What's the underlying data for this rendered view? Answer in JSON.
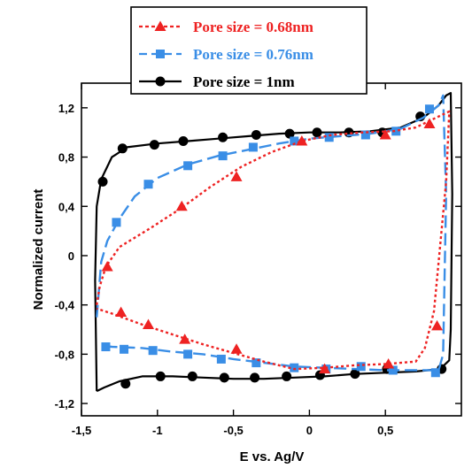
{
  "chart_data": {
    "type": "line",
    "xlabel": "E vs. Ag/V",
    "ylabel": "Normalized current",
    "xlim": [
      -1.5,
      1.0
    ],
    "ylim": [
      -1.3,
      1.4
    ],
    "x_ticks": [
      -1.5,
      -1.0,
      -0.5,
      0.0,
      0.5
    ],
    "x_tick_labels": [
      "-1,5",
      "-1",
      "-0,5",
      "0",
      "0,5"
    ],
    "y_ticks": [
      -1.2,
      -0.8,
      -0.4,
      0.0,
      0.4,
      0.8,
      1.2
    ],
    "y_tick_labels": [
      "-1,2",
      "-0,8",
      "-0,4",
      "0",
      "0,4",
      "0,8",
      "1,2"
    ],
    "legend_position": "top-center",
    "series": [
      {
        "name": "Pore size = 0.68nm",
        "color": "#ee2222",
        "marker": "triangle",
        "line_style": "dotted",
        "curve": [
          [
            -1.4,
            -0.4
          ],
          [
            -1.38,
            -0.25
          ],
          [
            -1.34,
            -0.09
          ],
          [
            -1.25,
            0.07
          ],
          [
            -1.05,
            0.22
          ],
          [
            -0.85,
            0.38
          ],
          [
            -0.65,
            0.56
          ],
          [
            -0.45,
            0.72
          ],
          [
            -0.25,
            0.84
          ],
          [
            -0.05,
            0.93
          ],
          [
            0.15,
            0.98
          ],
          [
            0.35,
            1.0
          ],
          [
            0.55,
            1.01
          ],
          [
            0.7,
            1.04
          ],
          [
            0.8,
            1.1
          ],
          [
            0.92,
            1.17
          ],
          [
            0.9,
            0.6
          ],
          [
            0.82,
            -0.45
          ],
          [
            0.76,
            -0.75
          ],
          [
            0.7,
            -0.86
          ],
          [
            0.5,
            -0.88
          ],
          [
            0.3,
            -0.89
          ],
          [
            0.1,
            -0.91
          ],
          [
            -0.1,
            -0.92
          ],
          [
            -0.3,
            -0.86
          ],
          [
            -0.5,
            -0.79
          ],
          [
            -0.7,
            -0.72
          ],
          [
            -0.9,
            -0.64
          ],
          [
            -1.1,
            -0.56
          ],
          [
            -1.3,
            -0.47
          ],
          [
            -1.4,
            -0.43
          ]
        ],
        "markers": [
          [
            -1.33,
            -0.09
          ],
          [
            -0.84,
            0.4
          ],
          [
            -0.48,
            0.64
          ],
          [
            -0.05,
            0.93
          ],
          [
            0.5,
            0.98
          ],
          [
            0.79,
            1.07
          ],
          [
            0.84,
            -0.57
          ],
          [
            0.52,
            -0.88
          ],
          [
            0.1,
            -0.92
          ],
          [
            -0.48,
            -0.76
          ],
          [
            -0.82,
            -0.68
          ],
          [
            -1.06,
            -0.56
          ],
          [
            -1.24,
            -0.46
          ]
        ]
      },
      {
        "name": "Pore size = 0.76nm",
        "color": "#3a8ee6",
        "marker": "square",
        "line_style": "dashed",
        "curve": [
          [
            -1.4,
            -0.5
          ],
          [
            -1.37,
            -0.05
          ],
          [
            -1.33,
            0.12
          ],
          [
            -1.25,
            0.3
          ],
          [
            -1.15,
            0.48
          ],
          [
            -1.0,
            0.63
          ],
          [
            -0.8,
            0.74
          ],
          [
            -0.6,
            0.81
          ],
          [
            -0.4,
            0.86
          ],
          [
            -0.2,
            0.91
          ],
          [
            0.0,
            0.95
          ],
          [
            0.2,
            0.97
          ],
          [
            0.4,
            0.99
          ],
          [
            0.6,
            1.03
          ],
          [
            0.75,
            1.12
          ],
          [
            0.85,
            1.22
          ],
          [
            0.88,
            1.3
          ],
          [
            0.9,
            0.5
          ],
          [
            0.88,
            -0.8
          ],
          [
            0.85,
            -0.93
          ],
          [
            0.7,
            -0.93
          ],
          [
            0.5,
            -0.93
          ],
          [
            0.3,
            -0.92
          ],
          [
            0.1,
            -0.91
          ],
          [
            -0.1,
            -0.9
          ],
          [
            -0.3,
            -0.87
          ],
          [
            -0.5,
            -0.84
          ],
          [
            -0.7,
            -0.8
          ],
          [
            -0.9,
            -0.78
          ],
          [
            -1.1,
            -0.75
          ],
          [
            -1.3,
            -0.74
          ],
          [
            -1.38,
            -0.73
          ]
        ],
        "markers": [
          [
            -1.27,
            0.27
          ],
          [
            -1.06,
            0.58
          ],
          [
            -0.8,
            0.73
          ],
          [
            -0.57,
            0.81
          ],
          [
            -0.37,
            0.88
          ],
          [
            -0.1,
            0.93
          ],
          [
            0.13,
            0.96
          ],
          [
            0.37,
            0.98
          ],
          [
            0.57,
            1.01
          ],
          [
            0.79,
            1.19
          ],
          [
            0.83,
            -0.95
          ],
          [
            0.55,
            -0.93
          ],
          [
            0.34,
            -0.9
          ],
          [
            0.11,
            -0.92
          ],
          [
            -0.1,
            -0.91
          ],
          [
            -0.35,
            -0.87
          ],
          [
            -0.58,
            -0.84
          ],
          [
            -0.8,
            -0.8
          ],
          [
            -1.03,
            -0.77
          ],
          [
            -1.22,
            -0.76
          ],
          [
            -1.34,
            -0.74
          ]
        ]
      },
      {
        "name": "Pore size = 1nm",
        "color": "#000000",
        "marker": "circle",
        "line_style": "solid",
        "curve": [
          [
            -1.4,
            -1.1
          ],
          [
            -1.41,
            -0.2
          ],
          [
            -1.4,
            0.4
          ],
          [
            -1.37,
            0.62
          ],
          [
            -1.3,
            0.8
          ],
          [
            -1.2,
            0.88
          ],
          [
            -1.0,
            0.91
          ],
          [
            -0.8,
            0.93
          ],
          [
            -0.6,
            0.95
          ],
          [
            -0.4,
            0.97
          ],
          [
            -0.2,
            0.99
          ],
          [
            0.0,
            1.0
          ],
          [
            0.2,
            1.0
          ],
          [
            0.4,
            1.01
          ],
          [
            0.6,
            1.04
          ],
          [
            0.75,
            1.12
          ],
          [
            0.85,
            1.22
          ],
          [
            0.9,
            1.3
          ],
          [
            0.93,
            1.32
          ],
          [
            0.94,
            0.5
          ],
          [
            0.93,
            -0.6
          ],
          [
            0.92,
            -0.85
          ],
          [
            0.86,
            -0.92
          ],
          [
            0.7,
            -0.94
          ],
          [
            0.5,
            -0.95
          ],
          [
            0.3,
            -0.96
          ],
          [
            0.1,
            -0.98
          ],
          [
            -0.1,
            -0.99
          ],
          [
            -0.3,
            -1.0
          ],
          [
            -0.5,
            -1.0
          ],
          [
            -0.7,
            -0.99
          ],
          [
            -0.9,
            -0.98
          ],
          [
            -1.1,
            -0.98
          ],
          [
            -1.25,
            -1.02
          ],
          [
            -1.35,
            -1.07
          ],
          [
            -1.4,
            -1.1
          ]
        ],
        "markers": [
          [
            -1.36,
            0.6
          ],
          [
            -1.23,
            0.87
          ],
          [
            -1.02,
            0.9
          ],
          [
            -0.83,
            0.93
          ],
          [
            -0.57,
            0.96
          ],
          [
            -0.35,
            0.98
          ],
          [
            -0.13,
            0.99
          ],
          [
            0.05,
            1.0
          ],
          [
            0.26,
            1.0
          ],
          [
            0.48,
            1.0
          ],
          [
            0.73,
            1.13
          ],
          [
            0.87,
            -0.92
          ],
          [
            0.51,
            -0.92
          ],
          [
            0.3,
            -0.96
          ],
          [
            0.07,
            -0.97
          ],
          [
            -0.15,
            -0.98
          ],
          [
            -0.36,
            -0.99
          ],
          [
            -0.56,
            -0.99
          ],
          [
            -0.77,
            -0.98
          ],
          [
            -0.98,
            -0.98
          ],
          [
            -1.21,
            -1.04
          ]
        ]
      }
    ]
  }
}
